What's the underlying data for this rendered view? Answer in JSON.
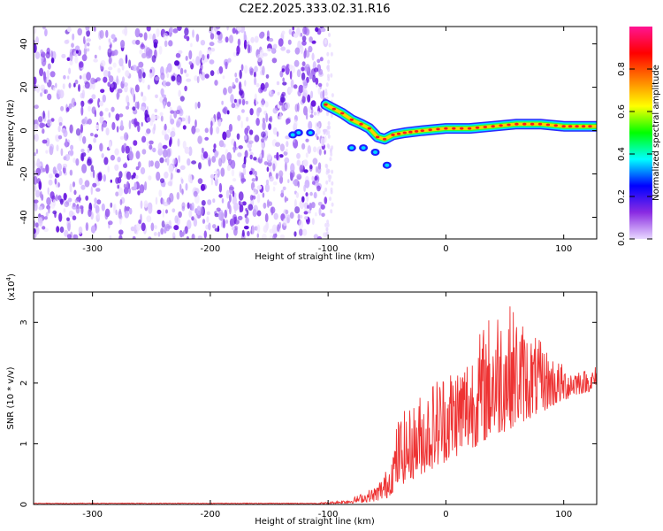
{
  "title": "C2E2.2025.333.02.31.R16",
  "chart_data": [
    {
      "type": "heatmap",
      "title": "C2E2.2025.333.02.31.R16",
      "xlabel": "Height of straight line (km)",
      "ylabel": "Frequency (Hz)",
      "xlim": [
        -350,
        128
      ],
      "ylim": [
        -50,
        48
      ],
      "xticks": [
        -300,
        -200,
        -100,
        0,
        100
      ],
      "yticks": [
        -40,
        -20,
        0,
        20,
        40
      ],
      "noise_region_x": [
        -350,
        -102
      ],
      "ridge": {
        "description": "bright spectral ridge",
        "points": [
          [
            -102,
            12
          ],
          [
            -95,
            10
          ],
          [
            -88,
            8
          ],
          [
            -80,
            5
          ],
          [
            -72,
            3
          ],
          [
            -65,
            1
          ],
          [
            -58,
            -3
          ],
          [
            -52,
            -4
          ],
          [
            -45,
            -2
          ],
          [
            -35,
            -1
          ],
          [
            -20,
            0
          ],
          [
            0,
            1
          ],
          [
            20,
            1
          ],
          [
            40,
            2
          ],
          [
            60,
            3
          ],
          [
            80,
            3
          ],
          [
            100,
            2
          ],
          [
            128,
            2
          ]
        ]
      },
      "secondary_blobs": [
        [
          -125,
          -1
        ],
        [
          -115,
          -1
        ],
        [
          -130,
          -2
        ],
        [
          -80,
          -8
        ],
        [
          -70,
          -8
        ],
        [
          -60,
          -10
        ],
        [
          -50,
          -16
        ]
      ],
      "colorbar": {
        "label": "Normalized spectral amplitude",
        "range": [
          0.0,
          1.0
        ],
        "ticks": [
          "0.0",
          "0.2",
          "0.4",
          "0.6",
          "0.8"
        ],
        "colors": [
          "#e8d8ff",
          "#8a2be2",
          "#0000ff",
          "#00ffff",
          "#00ff00",
          "#ffff00",
          "#ff7f00",
          "#ff0000",
          "#ff1493"
        ]
      }
    },
    {
      "type": "line",
      "xlabel": "Height of straight line (km)",
      "ylabel": "SNR (10 * v/v)",
      "yscale_label": "(x10",
      "yscale_exp": "4",
      "xlim": [
        -350,
        128
      ],
      "ylim": [
        0,
        3.5
      ],
      "xticks": [
        -300,
        -200,
        -100,
        0,
        100
      ],
      "yticks": [
        0,
        1,
        2,
        3
      ],
      "color": "#ee3333",
      "envelope": {
        "x": [
          -350,
          -120,
          -100,
          -80,
          -60,
          -50,
          -45,
          -40,
          -30,
          -20,
          -10,
          0,
          10,
          20,
          30,
          40,
          50,
          60,
          70,
          80,
          90,
          100,
          110,
          120,
          128
        ],
        "y": [
          0.02,
          0.02,
          0.04,
          0.1,
          0.3,
          0.6,
          1.0,
          1.5,
          1.6,
          1.9,
          2.1,
          2.3,
          2.4,
          2.6,
          2.9,
          3.3,
          3.4,
          3.2,
          2.9,
          2.7,
          2.5,
          2.3,
          2.3,
          2.2,
          2.3
        ]
      },
      "baseline": {
        "x": [
          -350,
          -120,
          -100,
          -80,
          -60,
          -50,
          -45,
          -40,
          -30,
          -20,
          -10,
          0,
          10,
          20,
          30,
          40,
          50,
          60,
          70,
          80,
          90,
          100,
          110,
          120,
          128
        ],
        "y": [
          0.0,
          0.0,
          0.01,
          0.02,
          0.05,
          0.1,
          0.2,
          0.3,
          0.4,
          0.5,
          0.6,
          0.7,
          0.8,
          0.9,
          1.0,
          1.1,
          1.2,
          1.3,
          1.4,
          1.5,
          1.6,
          1.7,
          1.8,
          1.85,
          1.9
        ]
      }
    }
  ]
}
